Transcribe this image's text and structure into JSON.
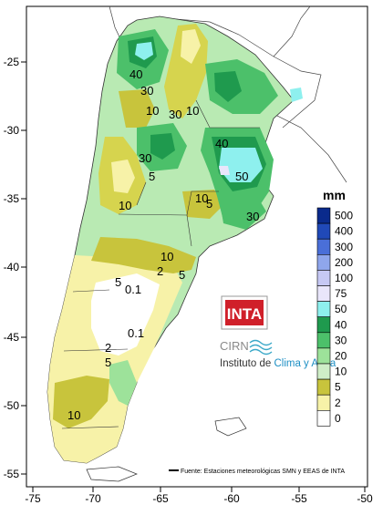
{
  "map": {
    "x_ticks": [
      "-75",
      "-70",
      "-65",
      "-60",
      "-55",
      "-50"
    ],
    "y_ticks": [
      "-25",
      "-30",
      "-35",
      "-40",
      "-45",
      "-50",
      "-55"
    ],
    "contour_labels": [
      "40",
      "30",
      "10",
      "10",
      "30",
      "40",
      "50",
      "30",
      "5",
      "10",
      "10",
      "5",
      "30",
      "10",
      "2",
      "5",
      "0.1",
      "0.1",
      "2",
      "5",
      "5",
      "10"
    ]
  },
  "legend": {
    "unit": "mm",
    "levels": [
      "500",
      "400",
      "300",
      "200",
      "100",
      "75",
      "50",
      "40",
      "30",
      "20",
      "10",
      "5",
      "2",
      "0"
    ],
    "colors": [
      "#0a2a8c",
      "#2049b8",
      "#4a6fd8",
      "#8fa6ec",
      "#c6c8f4",
      "#e9e6fb",
      "#8ef0ee",
      "#1f9a4e",
      "#4cc06a",
      "#9de29a",
      "#cfeec7",
      "#c8c43c",
      "#f7f2a8",
      "#ffffff"
    ]
  },
  "logo": {
    "inta": "INTA",
    "cirn": "CIRN",
    "institute_prefix": "Instituto de ",
    "institute_highlight": "Clima y Agua"
  },
  "footer": {
    "source": "Fuente: Estaciones meteorológicas SMN y EEAS de INTA"
  }
}
